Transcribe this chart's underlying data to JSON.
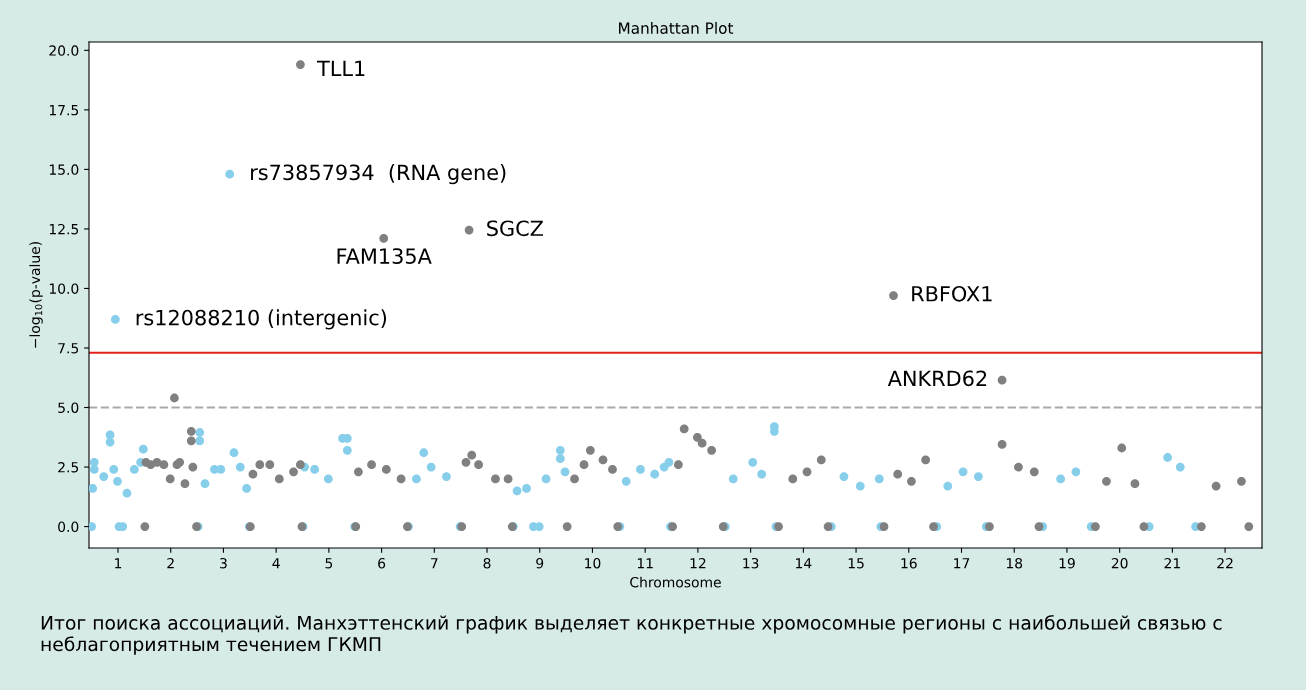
{
  "chart_data": {
    "type": "scatter",
    "title": "Manhattan Plot",
    "xlabel": "Chromosome",
    "ylabel": "−log$_{10}$(p-value)",
    "xlim": [
      0.45,
      22.7
    ],
    "ylim": [
      -0.9,
      20.35
    ],
    "xticks": [
      1,
      2,
      3,
      4,
      5,
      6,
      7,
      8,
      9,
      10,
      11,
      12,
      13,
      14,
      15,
      16,
      17,
      18,
      19,
      20,
      21,
      22
    ],
    "yticks": [
      {
        "value": 0,
        "label": "0.0"
      },
      {
        "value": 2.5,
        "label": "2.5"
      },
      {
        "value": 5,
        "label": "5.0"
      },
      {
        "value": 7.5,
        "label": "7.5"
      },
      {
        "value": 10,
        "label": "10.0"
      },
      {
        "value": 12.5,
        "label": "12.5"
      },
      {
        "value": 15,
        "label": "15.0"
      },
      {
        "value": 17.5,
        "label": "17.5"
      },
      {
        "value": 20,
        "label": "20.0"
      }
    ],
    "grid": false,
    "marker": "circle",
    "series": [
      {
        "color": "#87ceeb",
        "x": [
          0.5,
          0.52,
          0.55,
          0.55,
          0.73,
          0.85,
          0.85,
          0.92,
          0.99,
          1.02,
          1.09,
          1.17,
          1.31,
          1.43,
          1.48,
          0.95,
          2.52,
          2.55,
          2.55,
          2.65,
          2.83,
          2.95,
          3.2,
          3.32,
          3.44,
          3.49,
          3.12,
          4.51,
          4.54,
          4.73,
          4.99,
          5.26,
          5.35,
          5.35,
          5.49,
          6.51,
          6.66,
          6.8,
          6.94,
          7.23,
          7.49,
          8.5,
          8.57,
          8.75,
          8.88,
          8.99,
          9.12,
          9.39,
          9.39,
          9.48,
          10.52,
          10.64,
          10.91,
          11.18,
          11.36,
          11.45,
          11.48,
          12.52,
          12.67,
          13.04,
          13.21,
          13.45,
          13.45,
          13.48,
          14.53,
          14.77,
          15.08,
          15.44,
          15.47,
          16.53,
          16.74,
          17.03,
          17.32,
          17.47,
          18.54,
          18.88,
          19.17,
          19.46,
          20.56,
          20.91,
          21.15,
          21.44
        ],
        "values": [
          0.0,
          1.6,
          2.7,
          2.4,
          2.1,
          3.85,
          3.55,
          2.4,
          1.9,
          0.0,
          0.0,
          1.4,
          2.4,
          2.7,
          3.25,
          8.7,
          0.0,
          3.95,
          3.6,
          1.8,
          2.4,
          2.4,
          3.1,
          2.5,
          1.6,
          0.0,
          14.8,
          0.0,
          2.5,
          2.4,
          2.0,
          3.7,
          3.7,
          3.2,
          0.0,
          0.0,
          2.0,
          3.1,
          2.5,
          2.1,
          0.0,
          0.0,
          1.5,
          1.6,
          0.0,
          0.0,
          2.0,
          3.2,
          2.85,
          2.3,
          0.0,
          1.9,
          2.4,
          2.2,
          2.5,
          2.7,
          0.0,
          0.0,
          2.0,
          2.7,
          2.2,
          4.2,
          4.0,
          0.0,
          0.0,
          2.1,
          1.7,
          2.0,
          0.0,
          0.0,
          1.7,
          2.3,
          2.1,
          0.0,
          0.0,
          2.0,
          2.3,
          0.0,
          0.0,
          2.9,
          2.5,
          0.0
        ]
      },
      {
        "color": "#808080",
        "x": [
          1.51,
          1.53,
          1.62,
          1.74,
          1.87,
          1.99,
          2.07,
          2.12,
          2.17,
          2.27,
          2.39,
          2.39,
          2.42,
          2.49,
          3.51,
          3.56,
          3.69,
          3.88,
          4.06,
          4.33,
          4.46,
          4.49,
          4.46,
          5.51,
          5.56,
          5.81,
          6.09,
          6.37,
          6.49,
          6.04,
          7.52,
          7.6,
          7.71,
          7.84,
          8.16,
          8.4,
          8.48,
          7.66,
          9.52,
          9.66,
          9.84,
          9.96,
          10.2,
          10.38,
          10.48,
          11.52,
          11.63,
          11.74,
          11.99,
          12.08,
          12.26,
          12.48,
          13.53,
          13.8,
          14.07,
          14.34,
          14.47,
          15.53,
          15.79,
          16.05,
          16.32,
          16.47,
          15.71,
          17.53,
          17.77,
          18.08,
          18.38,
          18.47,
          17.77,
          19.54,
          19.75,
          20.04,
          20.29,
          20.46,
          21.55,
          21.83,
          22.31,
          22.45
        ],
        "values": [
          0.0,
          2.7,
          2.6,
          2.7,
          2.6,
          2.0,
          5.4,
          2.6,
          2.7,
          1.8,
          4.0,
          3.6,
          2.5,
          0.0,
          0.0,
          2.2,
          2.6,
          2.6,
          2.0,
          2.3,
          2.6,
          0.0,
          19.4,
          0.0,
          2.3,
          2.6,
          2.4,
          2.0,
          0.0,
          12.1,
          0.0,
          2.7,
          3.0,
          2.6,
          2.0,
          2.0,
          0.0,
          12.45,
          0.0,
          2.0,
          2.6,
          3.2,
          2.8,
          2.4,
          0.0,
          0.0,
          2.6,
          4.1,
          3.75,
          3.5,
          3.2,
          0.0,
          0.0,
          2.0,
          2.3,
          2.8,
          0.0,
          0.0,
          2.2,
          1.9,
          2.8,
          0.0,
          9.7,
          0.0,
          3.45,
          2.5,
          2.3,
          0.0,
          6.15,
          0.0,
          1.9,
          3.3,
          1.8,
          0.0,
          0.0,
          1.7,
          1.9,
          0.0
        ]
      }
    ],
    "ref_lines": [
      {
        "axis": "y",
        "value": 7.3,
        "color": "#e3201b",
        "line_style": "solid"
      },
      {
        "axis": "y",
        "value": 5.0,
        "color": "#a9a9a9",
        "line_style": "dashed"
      }
    ],
    "annotations": [
      {
        "text": "TLL1",
        "x": 4.46,
        "y": 19.4
      },
      {
        "text": "rs73857934  (RNA gene)",
        "x": 3.12,
        "y": 14.8
      },
      {
        "text": "FAM135A",
        "x": 6.04,
        "y": 12.1
      },
      {
        "text": "SGCZ",
        "x": 7.66,
        "y": 12.45
      },
      {
        "text": "RBFOX1",
        "x": 15.71,
        "y": 9.7
      },
      {
        "text": "rs12088210 (intergenic)",
        "x": 0.95,
        "y": 8.7
      },
      {
        "text": "ANKRD62",
        "x": 17.77,
        "y": 6.15
      },
      "Итог поиска ассоциаций. Манхэттенский график выделяет конкретные хромосомные регионы с наибольшей связью с неблагоприятным течением ГКМП"
    ]
  }
}
